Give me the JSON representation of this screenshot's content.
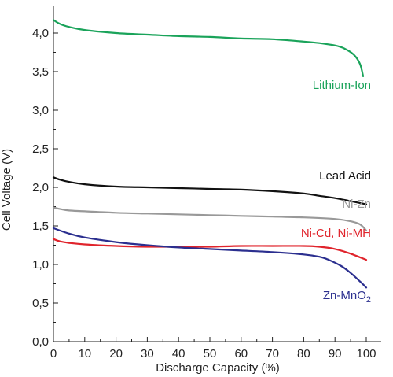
{
  "chart_data": {
    "type": "line",
    "xlabel": "Discharge Capacity (%)",
    "ylabel": "Cell Voltage (V)",
    "xlim": [
      0,
      100
    ],
    "ylim": [
      0,
      4.25
    ],
    "x_ticks": [
      0,
      10,
      20,
      30,
      40,
      50,
      60,
      70,
      80,
      90,
      100
    ],
    "x_tick_labels": [
      "0",
      "10",
      "20",
      "30",
      "40",
      "50",
      "60",
      "70",
      "80",
      "90",
      "100"
    ],
    "y_ticks": [
      0,
      0.5,
      1.0,
      1.5,
      2.0,
      2.5,
      3.0,
      3.5,
      4.0
    ],
    "y_tick_labels": [
      "0,0",
      "0,5",
      "1,0",
      "1,5",
      "2,0",
      "2,5",
      "3,0",
      "3,5",
      "4,0"
    ],
    "grid": false,
    "series": [
      {
        "name": "Lithium-Ion",
        "color": "#1aa35a",
        "x": [
          0,
          2,
          5,
          10,
          20,
          30,
          40,
          50,
          60,
          70,
          80,
          85,
          90,
          93,
          96,
          98,
          99
        ],
        "y": [
          4.17,
          4.12,
          4.08,
          4.04,
          4.0,
          3.98,
          3.96,
          3.95,
          3.93,
          3.92,
          3.89,
          3.87,
          3.84,
          3.8,
          3.72,
          3.6,
          3.44
        ]
      },
      {
        "name": "Lead Acid",
        "color": "#111111",
        "x": [
          0,
          2,
          5,
          10,
          20,
          30,
          40,
          50,
          60,
          70,
          80,
          85,
          90,
          95,
          100
        ],
        "y": [
          2.13,
          2.1,
          2.07,
          2.04,
          2.01,
          2.0,
          1.99,
          1.98,
          1.97,
          1.95,
          1.92,
          1.89,
          1.86,
          1.82,
          1.78
        ]
      },
      {
        "name": "Ni-Zn",
        "color": "#999999",
        "x": [
          0,
          2,
          5,
          10,
          20,
          30,
          40,
          50,
          60,
          70,
          80,
          90,
          95,
          98,
          100
        ],
        "y": [
          1.74,
          1.72,
          1.7,
          1.69,
          1.67,
          1.66,
          1.65,
          1.64,
          1.63,
          1.62,
          1.61,
          1.59,
          1.56,
          1.52,
          1.44
        ]
      },
      {
        "name": "Ni-Cd, Ni-MH",
        "color": "#e0242c",
        "x": [
          0,
          2,
          5,
          10,
          20,
          30,
          40,
          50,
          60,
          70,
          80,
          85,
          90,
          95,
          100
        ],
        "y": [
          1.33,
          1.3,
          1.28,
          1.26,
          1.24,
          1.23,
          1.23,
          1.23,
          1.24,
          1.24,
          1.24,
          1.23,
          1.2,
          1.14,
          1.06
        ]
      },
      {
        "name": "Zn-MnO",
        "name_subscript": "2",
        "color": "#2b2f8f",
        "x": [
          0,
          5,
          10,
          20,
          30,
          40,
          50,
          60,
          70,
          80,
          85,
          88,
          92,
          95,
          98,
          100
        ],
        "y": [
          1.47,
          1.4,
          1.35,
          1.29,
          1.25,
          1.22,
          1.2,
          1.18,
          1.16,
          1.13,
          1.1,
          1.06,
          0.98,
          0.89,
          0.78,
          0.7
        ]
      }
    ]
  }
}
